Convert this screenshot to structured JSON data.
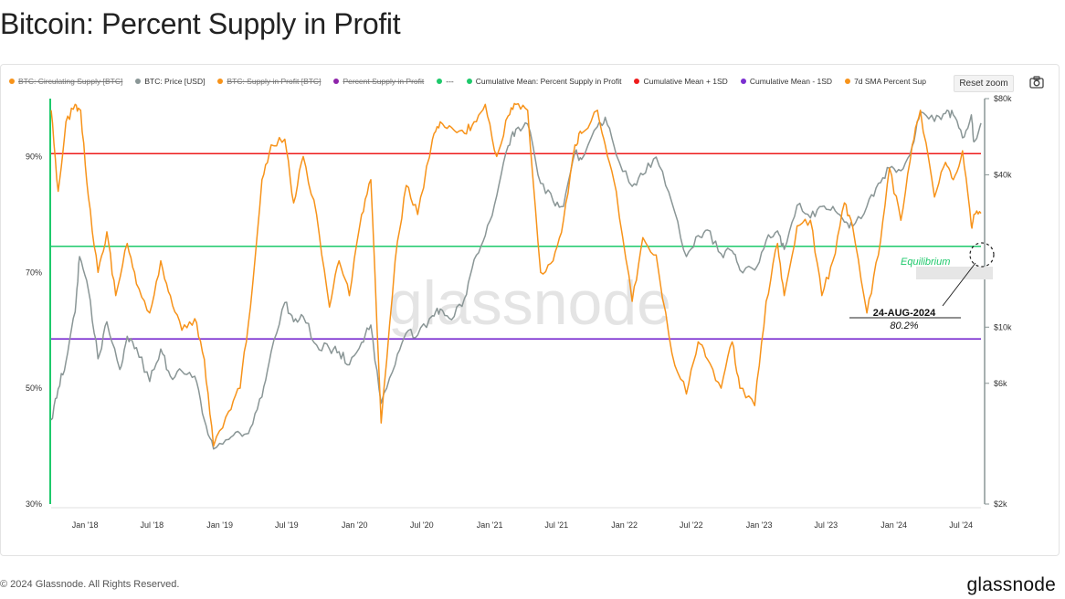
{
  "page": {
    "title": "Bitcoin: Percent Supply in Profit",
    "copyright": "© 2024 Glassnode. All Rights Reserved.",
    "brand": "glassnode",
    "watermark": "glassnode"
  },
  "toolbar": {
    "reset_zoom_label": "Reset zoom",
    "camera_icon": "camera-icon"
  },
  "legend": [
    {
      "label": "BTC: Circulating Supply [BTC]",
      "color": "#f7931a",
      "enabled": false
    },
    {
      "label": "BTC: Price [USD]",
      "color": "#8a9696",
      "enabled": true
    },
    {
      "label": "BTC: Supply in Profit [BTC]",
      "color": "#f7931a",
      "enabled": false
    },
    {
      "label": "Percent Supply in Profit",
      "color": "#8e24aa",
      "enabled": false
    },
    {
      "label": "---",
      "color": "#1ec96b",
      "enabled": true
    },
    {
      "label": "Cumulative Mean: Percent Supply in Profit",
      "color": "#1ec96b",
      "enabled": true
    },
    {
      "label": "Cumulative Mean + 1SD",
      "color": "#ee1c1c",
      "enabled": true
    },
    {
      "label": "Cumulative Mean - 1SD",
      "color": "#7b2fd0",
      "enabled": true
    },
    {
      "label": "7d SMA Percent Sup",
      "color": "#f7931a",
      "enabled": true
    }
  ],
  "chart_data": {
    "type": "line",
    "x_tick_labels": [
      "Jan '18",
      "Jul '18",
      "Jan '19",
      "Jul '19",
      "Jan '20",
      "Jul '20",
      "Jan '21",
      "Jul '21",
      "Jan '22",
      "Jul '22",
      "Jan '23",
      "Jul '23",
      "Jan '24",
      "Jul '24"
    ],
    "x_ticks": [
      "2018-01-01",
      "2018-07-01",
      "2019-01-01",
      "2019-07-01",
      "2020-01-01",
      "2020-07-01",
      "2021-01-01",
      "2021-07-01",
      "2022-01-01",
      "2022-07-01",
      "2023-01-01",
      "2023-07-01",
      "2024-01-01",
      "2024-07-01"
    ],
    "x_range": [
      "2017-10-01",
      "2024-08-24"
    ],
    "y_left": {
      "ticks": [
        30,
        50,
        70,
        90
      ],
      "tick_labels": [
        "30%",
        "50%",
        "70%",
        "90%"
      ],
      "range": [
        30,
        100
      ]
    },
    "y_right": {
      "scale": "log",
      "ticks": [
        2000,
        6000,
        10000,
        40000,
        80000
      ],
      "tick_labels": [
        "$2k",
        "$6k",
        "$10k",
        "$40k",
        "$80k"
      ],
      "range": [
        2000,
        80000
      ]
    },
    "horizontal_lines": [
      {
        "name": "Cumulative Mean + 1SD",
        "value": 90.5,
        "color": "#ee1c1c"
      },
      {
        "name": "Cumulative Mean: Percent Supply in Profit",
        "value": 74.5,
        "color": "#1ec96b"
      },
      {
        "name": "Cumulative Mean - 1SD",
        "value": 58.5,
        "color": "#7b2fd0"
      }
    ],
    "series": [
      {
        "name": "7d SMA Percent Sup",
        "axis": "left",
        "color": "#f7931a",
        "x": [
          "2017-10-01",
          "2017-10-20",
          "2017-11-10",
          "2017-12-05",
          "2017-12-20",
          "2018-01-10",
          "2018-02-05",
          "2018-03-01",
          "2018-03-25",
          "2018-04-25",
          "2018-05-20",
          "2018-06-25",
          "2018-07-25",
          "2018-08-20",
          "2018-09-20",
          "2018-10-25",
          "2018-11-20",
          "2018-12-15",
          "2019-01-25",
          "2019-02-25",
          "2019-03-25",
          "2019-04-25",
          "2019-05-20",
          "2019-06-26",
          "2019-07-20",
          "2019-08-15",
          "2019-09-20",
          "2019-10-25",
          "2019-11-20",
          "2019-12-18",
          "2020-01-20",
          "2020-02-14",
          "2020-03-13",
          "2020-04-20",
          "2020-05-20",
          "2020-06-20",
          "2020-07-30",
          "2020-08-20",
          "2020-09-20",
          "2020-10-25",
          "2020-11-20",
          "2020-12-20",
          "2021-01-20",
          "2021-02-20",
          "2021-03-13",
          "2021-04-14",
          "2021-05-19",
          "2021-06-22",
          "2021-07-20",
          "2021-08-20",
          "2021-09-07",
          "2021-10-20",
          "2021-11-10",
          "2021-12-10",
          "2022-01-22",
          "2022-02-20",
          "2022-03-28",
          "2022-05-10",
          "2022-06-18",
          "2022-07-20",
          "2022-08-14",
          "2022-09-20",
          "2022-10-20",
          "2022-11-10",
          "2022-12-20",
          "2023-01-20",
          "2023-02-20",
          "2023-03-10",
          "2023-04-14",
          "2023-05-20",
          "2023-06-20",
          "2023-07-20",
          "2023-08-20",
          "2023-09-11",
          "2023-10-20",
          "2023-11-20",
          "2023-12-20",
          "2024-01-20",
          "2024-02-20",
          "2024-03-13",
          "2024-04-20",
          "2024-05-20",
          "2024-06-10",
          "2024-07-05",
          "2024-07-29",
          "2024-08-05",
          "2024-08-24"
        ],
        "y": [
          98,
          84,
          96,
          99,
          98,
          83,
          70,
          77,
          66,
          75,
          68,
          63,
          72,
          66,
          60,
          62,
          55,
          40,
          46,
          50,
          64,
          86,
          92,
          93,
          82,
          90,
          80,
          64,
          72,
          66,
          80,
          86,
          44,
          72,
          85,
          80,
          93,
          96,
          95,
          94,
          96,
          99,
          90,
          97,
          99,
          98,
          70,
          72,
          79,
          92,
          94,
          98,
          92,
          84,
          65,
          76,
          73,
          56,
          49,
          58,
          55,
          50,
          58,
          50,
          47,
          65,
          75,
          66,
          78,
          79,
          66,
          72,
          82,
          78,
          63,
          73,
          88,
          79,
          92,
          98,
          83,
          89,
          86,
          91,
          78,
          80,
          80.2
        ]
      },
      {
        "name": "BTC: Price [USD]",
        "axis": "right",
        "color": "#8a9696",
        "x": [
          "2017-10-01",
          "2017-10-20",
          "2017-11-10",
          "2017-12-05",
          "2017-12-17",
          "2018-01-10",
          "2018-02-05",
          "2018-03-01",
          "2018-04-05",
          "2018-04-25",
          "2018-05-20",
          "2018-06-25",
          "2018-07-25",
          "2018-08-20",
          "2018-09-20",
          "2018-10-25",
          "2018-11-20",
          "2018-12-15",
          "2019-01-25",
          "2019-02-25",
          "2019-03-25",
          "2019-04-25",
          "2019-05-20",
          "2019-06-26",
          "2019-07-20",
          "2019-08-15",
          "2019-09-20",
          "2019-10-25",
          "2019-11-20",
          "2019-12-18",
          "2020-01-20",
          "2020-02-14",
          "2020-03-13",
          "2020-04-20",
          "2020-05-20",
          "2020-06-20",
          "2020-07-30",
          "2020-08-20",
          "2020-09-20",
          "2020-10-25",
          "2020-11-20",
          "2020-12-20",
          "2021-01-20",
          "2021-02-20",
          "2021-03-13",
          "2021-04-14",
          "2021-05-19",
          "2021-06-22",
          "2021-07-20",
          "2021-08-20",
          "2021-09-07",
          "2021-10-20",
          "2021-11-10",
          "2021-12-10",
          "2022-01-22",
          "2022-02-20",
          "2022-03-28",
          "2022-05-10",
          "2022-06-18",
          "2022-07-20",
          "2022-08-14",
          "2022-09-20",
          "2022-10-20",
          "2022-11-10",
          "2022-12-20",
          "2023-01-20",
          "2023-02-20",
          "2023-03-10",
          "2023-04-14",
          "2023-05-20",
          "2023-06-20",
          "2023-07-20",
          "2023-08-20",
          "2023-09-11",
          "2023-10-20",
          "2023-11-20",
          "2023-12-20",
          "2024-01-20",
          "2024-02-20",
          "2024-03-13",
          "2024-04-20",
          "2024-05-20",
          "2024-06-10",
          "2024-07-05",
          "2024-07-29",
          "2024-08-05",
          "2024-08-24"
        ],
        "y": [
          4300,
          5700,
          7300,
          11500,
          19000,
          14000,
          7500,
          10500,
          6800,
          9200,
          8300,
          6100,
          8200,
          6400,
          6700,
          6400,
          4300,
          3300,
          3600,
          3800,
          4000,
          5300,
          8000,
          12500,
          10500,
          11000,
          8500,
          8200,
          8000,
          7100,
          8700,
          10200,
          5000,
          7100,
          9500,
          9300,
          11100,
          11800,
          10700,
          13000,
          18500,
          23000,
          33000,
          52000,
          60500,
          63500,
          37000,
          31500,
          30000,
          49000,
          46000,
          62000,
          67500,
          48000,
          36000,
          40000,
          47000,
          31000,
          19000,
          23000,
          24200,
          19500,
          20000,
          16800,
          16800,
          22000,
          24000,
          20300,
          30300,
          27000,
          30000,
          30000,
          26000,
          25000,
          30000,
          37000,
          42500,
          41500,
          52000,
          71000,
          65000,
          70000,
          69000,
          56000,
          69000,
          54000,
          64000
        ]
      }
    ],
    "annotations": [
      {
        "text": "Equilibrium",
        "color": "#1ec96b"
      },
      {
        "text": "24-AUG-2024"
      },
      {
        "text": "80.2%"
      }
    ],
    "legend_position": "top",
    "grid": false
  }
}
